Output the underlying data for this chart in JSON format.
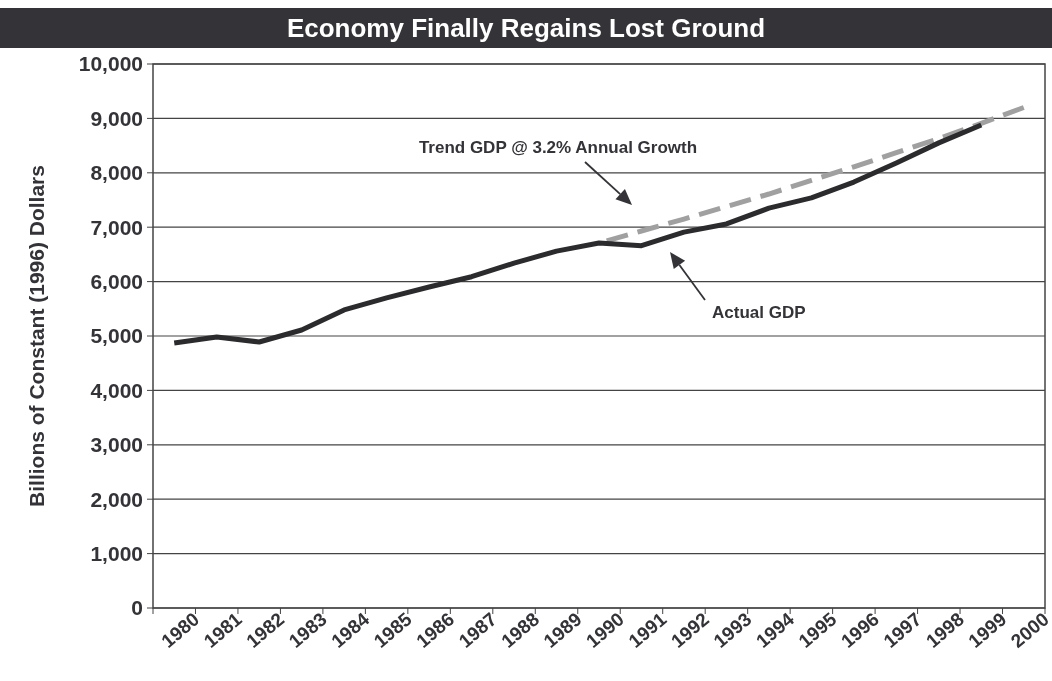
{
  "chart_data": {
    "type": "line",
    "title": "Economy Finally Regains Lost Ground",
    "ylabel": "Billions of Constant (1996) Dollars",
    "categories": [
      "1980",
      "1981",
      "1982",
      "1983",
      "1984",
      "1985",
      "1986",
      "1987",
      "1988",
      "1989",
      "1990",
      "1991",
      "1992",
      "1993",
      "1994",
      "1995",
      "1996",
      "1997",
      "1998",
      "1999",
      "2000"
    ],
    "series": [
      {
        "color": "#a0a0a0",
        "line_style": "dashed",
        "values": [
          null,
          null,
          null,
          null,
          null,
          null,
          null,
          null,
          null,
          null,
          6710,
          6930,
          7150,
          7380,
          7610,
          7860,
          8110,
          8370,
          8630,
          8910,
          9200
        ]
      },
      {
        "color": "#2b2b2e",
        "line_style": "solid",
        "values": [
          4870,
          4980,
          4890,
          5110,
          5480,
          5700,
          5900,
          6090,
          6340,
          6560,
          6710,
          6660,
          6910,
          7060,
          7350,
          7540,
          7830,
          8180,
          8550,
          8880,
          null
        ]
      }
    ],
    "annotations": [
      "Trend GDP @ 3.2% Annual Growth",
      "Actual GDP"
    ],
    "ylim": [
      0,
      10000
    ],
    "yticks": [
      {
        "value": 0,
        "label": "0"
      },
      {
        "value": 1000,
        "label": "1,000"
      },
      {
        "value": 2000,
        "label": "2,000"
      },
      {
        "value": 3000,
        "label": "3,000"
      },
      {
        "value": 4000,
        "label": "4,000"
      },
      {
        "value": 5000,
        "label": "5,000"
      },
      {
        "value": 6000,
        "label": "6,000"
      },
      {
        "value": 7000,
        "label": "7,000"
      },
      {
        "value": 8000,
        "label": "8,000"
      },
      {
        "value": 9000,
        "label": "9,000"
      },
      {
        "value": 10000,
        "label": "10,000"
      }
    ],
    "grid": "y",
    "marker": "none"
  }
}
